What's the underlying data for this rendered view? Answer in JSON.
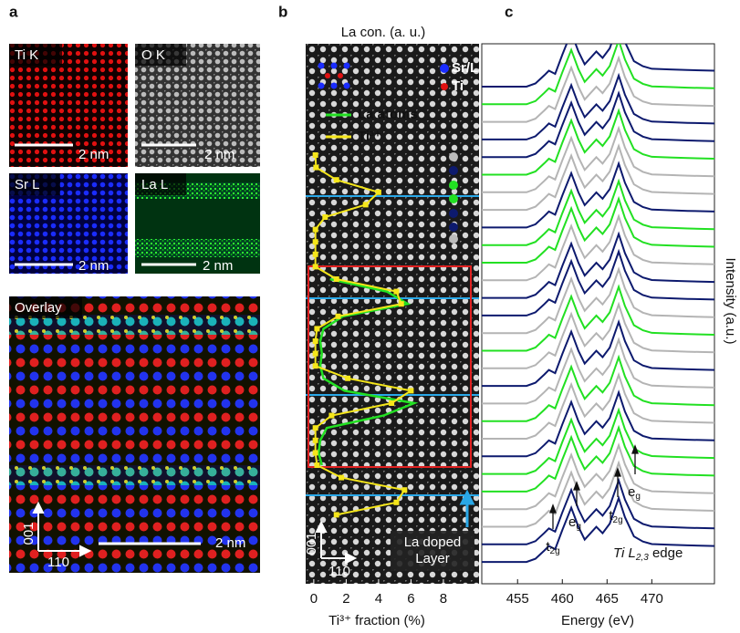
{
  "panel_labels": [
    "a",
    "b",
    "c"
  ],
  "panel_a": {
    "maps": [
      {
        "label": "Ti K",
        "scale": "2 nm"
      },
      {
        "label": "O K",
        "scale": "2 nm"
      },
      {
        "label": "Sr L",
        "scale": "2 nm"
      },
      {
        "label": "La L",
        "scale": "2 nm"
      }
    ],
    "overlay": {
      "label": "Overlay",
      "scale": "2 nm",
      "axis_vertical": "001",
      "axis_horizontal": "110"
    }
  },
  "panel_b": {
    "legend_atoms": [
      "Sr/La",
      "Ti"
    ],
    "layer_label": [
      "La doped",
      "Layer"
    ],
    "axis_vertical": "001",
    "axis_horizontal": "110"
  },
  "chart_data": [
    {
      "type": "line",
      "title": "La con. (a. u.)",
      "xlabel": "Ti³⁺ fraction (%)",
      "xlim": [
        -0.5,
        10.2
      ],
      "xticks": [
        0,
        2,
        4,
        6,
        8
      ],
      "series": [
        {
          "name": "La atoms",
          "color": "#22e022",
          "values": [
            null,
            null,
            null,
            null,
            null,
            null,
            null,
            null,
            null,
            null,
            1.0,
            4.5,
            5.8,
            1.8,
            0.6,
            0.4,
            0.5,
            0.4,
            0.6,
            1.9,
            6.2,
            4.3,
            0.8,
            0.4,
            0.3,
            0.5,
            null,
            null,
            null,
            null
          ]
        },
        {
          "name": "Ti³⁺",
          "color": "#f5e61a",
          "values": [
            0.1,
            0.14,
            1.4,
            4.0,
            3.2,
            0.7,
            0.1,
            0.1,
            0.1,
            0.1,
            1.4,
            5.1,
            5.4,
            1.5,
            0.2,
            0.1,
            0.1,
            0.1,
            2.1,
            6.0,
            4.8,
            1.1,
            0.1,
            0.1,
            0.1,
            0.2,
            1.7,
            5.6,
            5.1,
            1.4
          ]
        }
      ]
    },
    {
      "type": "spectra",
      "xlabel": "Energy (eV)",
      "ylabel": "Intensity (a.u.)",
      "xlim": [
        451,
        477
      ],
      "xticks": [
        455,
        460,
        465,
        470
      ],
      "x": [
        451,
        456,
        457,
        458,
        458.5,
        459.2,
        460,
        461,
        461.8,
        462.5,
        463.8,
        464.5,
        465.3,
        466.3,
        467,
        468,
        469,
        470,
        472,
        474,
        477
      ],
      "values": [
        0,
        0,
        0.05,
        0.18,
        0.25,
        0.2,
        0.5,
        0.85,
        0.55,
        0.35,
        0.55,
        0.45,
        0.6,
        1.0,
        0.7,
        0.4,
        0.32,
        0.28,
        0.27,
        0.26,
        0.25
      ],
      "colors": [
        "#0d1a6e",
        "#22e022",
        "#b4b4b4",
        "#0d1a6e",
        "#0d1a6e",
        "#22e022",
        "#b4b4b4",
        "#b4b4b4",
        "#0d1a6e",
        "#22e022",
        "#22e022",
        "#b4b4b4",
        "#0d1a6e",
        "#0d1a6e",
        "#b4b4b4",
        "#22e022",
        "#b4b4b4",
        "#0d1a6e",
        "#b4b4b4",
        "#22e022",
        "#b4b4b4",
        "#0d1a6e",
        "#22e022",
        "#22e022",
        "#b4b4b4",
        "#b4b4b4",
        "#0d1a6e",
        "#0d1a6e"
      ],
      "annotations": [
        {
          "text": "t",
          "sub": "2g"
        },
        {
          "text": "e",
          "sub": "g"
        },
        {
          "text": "t",
          "sub": "2g"
        },
        {
          "text": "e",
          "sub": "g"
        },
        {
          "text": "Ti L",
          "sub": "2,3",
          "tail": " edge"
        }
      ]
    }
  ]
}
